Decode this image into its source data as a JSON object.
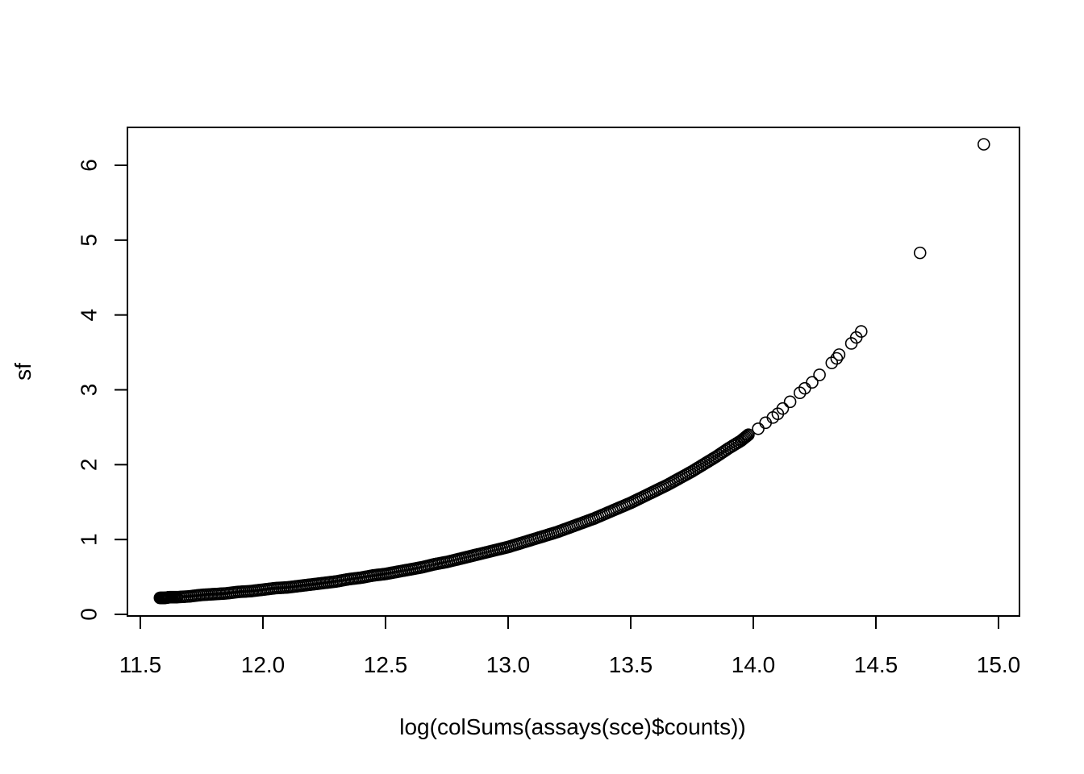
{
  "chart_data": {
    "type": "scatter",
    "title": "",
    "xlabel": "log(colSums(assays(sce)$counts))",
    "ylabel": "sf",
    "xlim": [
      11.5,
      15.0
    ],
    "ylim": [
      0,
      6
    ],
    "xticks": [
      "11.5",
      "12.0",
      "12.5",
      "13.0",
      "13.5",
      "14.0",
      "14.5",
      "15.0"
    ],
    "yticks": [
      "0",
      "1",
      "2",
      "3",
      "4",
      "5",
      "6"
    ],
    "grid": false,
    "legend": "none",
    "marker": "open-circle",
    "points": [
      {
        "x": 11.58,
        "y": 0.22
      },
      {
        "x": 11.6,
        "y": 0.22
      },
      {
        "x": 11.62,
        "y": 0.23
      },
      {
        "x": 11.65,
        "y": 0.23
      },
      {
        "x": 11.7,
        "y": 0.24
      },
      {
        "x": 11.75,
        "y": 0.26
      },
      {
        "x": 11.8,
        "y": 0.27
      },
      {
        "x": 11.85,
        "y": 0.28
      },
      {
        "x": 11.9,
        "y": 0.3
      },
      {
        "x": 11.95,
        "y": 0.31
      },
      {
        "x": 12.0,
        "y": 0.33
      },
      {
        "x": 12.05,
        "y": 0.35
      },
      {
        "x": 12.1,
        "y": 0.36
      },
      {
        "x": 12.15,
        "y": 0.38
      },
      {
        "x": 12.2,
        "y": 0.4
      },
      {
        "x": 12.25,
        "y": 0.42
      },
      {
        "x": 12.3,
        "y": 0.44
      },
      {
        "x": 12.35,
        "y": 0.47
      },
      {
        "x": 12.4,
        "y": 0.49
      },
      {
        "x": 12.45,
        "y": 0.52
      },
      {
        "x": 12.5,
        "y": 0.54
      },
      {
        "x": 12.55,
        "y": 0.57
      },
      {
        "x": 12.6,
        "y": 0.6
      },
      {
        "x": 12.65,
        "y": 0.63
      },
      {
        "x": 12.7,
        "y": 0.67
      },
      {
        "x": 12.75,
        "y": 0.7
      },
      {
        "x": 12.8,
        "y": 0.74
      },
      {
        "x": 12.85,
        "y": 0.78
      },
      {
        "x": 12.9,
        "y": 0.82
      },
      {
        "x": 12.95,
        "y": 0.86
      },
      {
        "x": 13.0,
        "y": 0.9
      },
      {
        "x": 13.05,
        "y": 0.95
      },
      {
        "x": 13.1,
        "y": 1.0
      },
      {
        "x": 13.15,
        "y": 1.05
      },
      {
        "x": 13.2,
        "y": 1.1
      },
      {
        "x": 13.25,
        "y": 1.16
      },
      {
        "x": 13.3,
        "y": 1.22
      },
      {
        "x": 13.35,
        "y": 1.28
      },
      {
        "x": 13.4,
        "y": 1.35
      },
      {
        "x": 13.45,
        "y": 1.42
      },
      {
        "x": 13.5,
        "y": 1.49
      },
      {
        "x": 13.55,
        "y": 1.57
      },
      {
        "x": 13.6,
        "y": 1.65
      },
      {
        "x": 13.65,
        "y": 1.73
      },
      {
        "x": 13.7,
        "y": 1.82
      },
      {
        "x": 13.75,
        "y": 1.91
      },
      {
        "x": 13.8,
        "y": 2.01
      },
      {
        "x": 13.85,
        "y": 2.11
      },
      {
        "x": 13.9,
        "y": 2.22
      },
      {
        "x": 13.95,
        "y": 2.32
      },
      {
        "x": 13.98,
        "y": 2.4
      },
      {
        "x": 14.02,
        "y": 2.48
      },
      {
        "x": 14.05,
        "y": 2.56
      },
      {
        "x": 14.08,
        "y": 2.63
      },
      {
        "x": 14.1,
        "y": 2.68
      },
      {
        "x": 14.12,
        "y": 2.75
      },
      {
        "x": 14.15,
        "y": 2.84
      },
      {
        "x": 14.19,
        "y": 2.96
      },
      {
        "x": 14.21,
        "y": 3.02
      },
      {
        "x": 14.24,
        "y": 3.1
      },
      {
        "x": 14.27,
        "y": 3.2
      },
      {
        "x": 14.32,
        "y": 3.36
      },
      {
        "x": 14.34,
        "y": 3.42
      },
      {
        "x": 14.35,
        "y": 3.47
      },
      {
        "x": 14.4,
        "y": 3.62
      },
      {
        "x": 14.42,
        "y": 3.7
      },
      {
        "x": 14.44,
        "y": 3.78
      },
      {
        "x": 14.68,
        "y": 4.83
      },
      {
        "x": 14.94,
        "y": 6.28
      }
    ]
  }
}
